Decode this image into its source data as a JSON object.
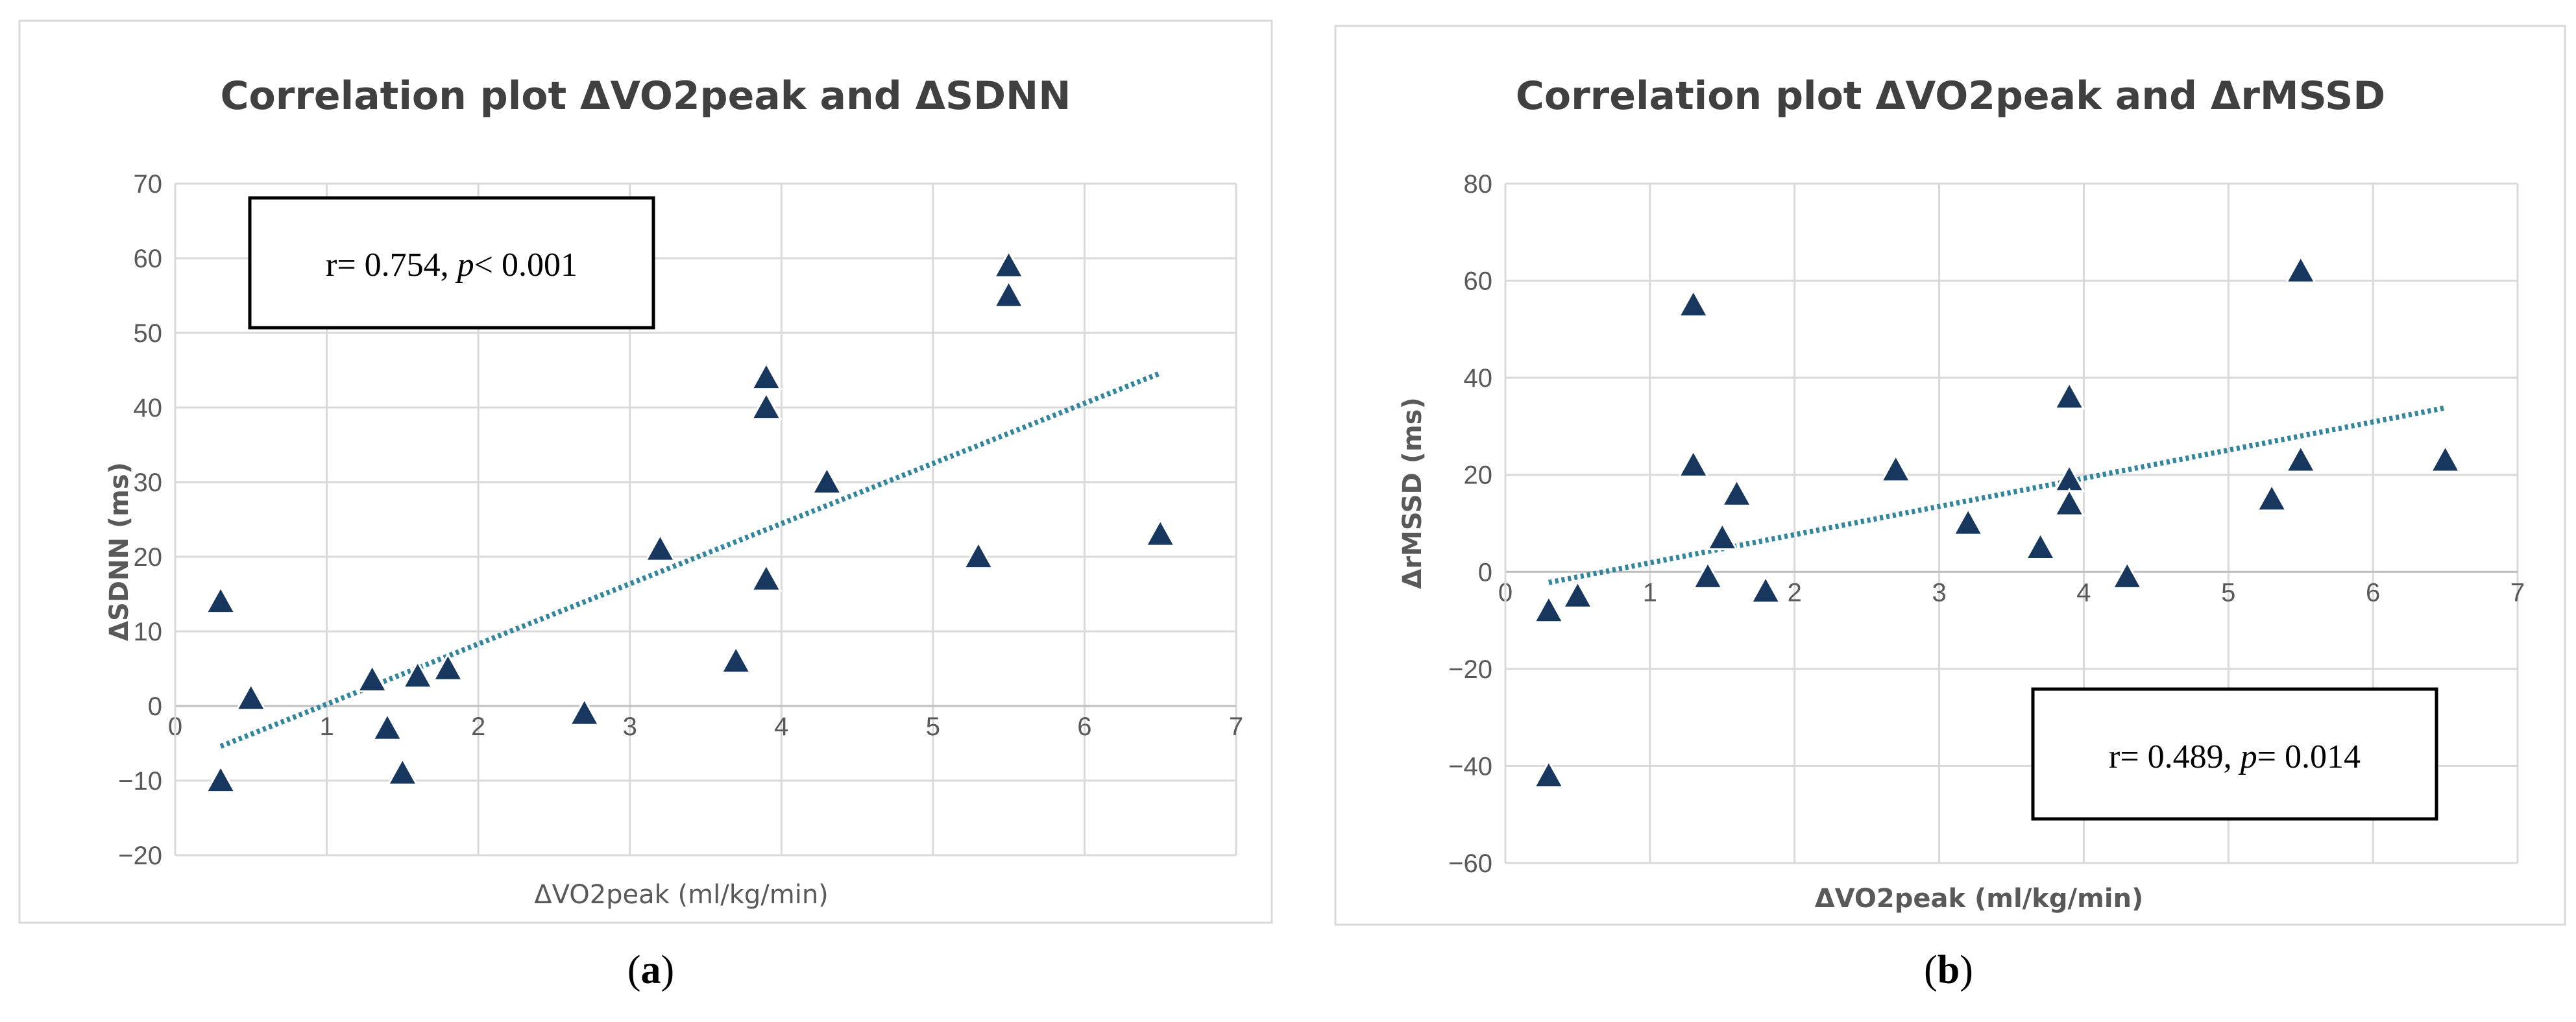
{
  "colors": {
    "marker": "#17375e",
    "trendline": "#31859c"
  },
  "chart_data": [
    {
      "type": "scatter",
      "title": "Correlation plot ΔVO2peak and ΔSDNN",
      "xlabel": "ΔVO2peak (ml/kg/min)",
      "ylabel": "ΔSDNN (ms)",
      "xlim": [
        0,
        7
      ],
      "ylim": [
        -20,
        70
      ],
      "x_ticks": [
        "0",
        "1",
        "2",
        "3",
        "4",
        "5",
        "6",
        "7"
      ],
      "y_ticks": [
        "−20",
        "−10",
        "0",
        "10",
        "20",
        "30",
        "40",
        "50",
        "60",
        "70"
      ],
      "grid": true,
      "marker": "triangle",
      "annotation_parts": [
        "r= 0.754, ",
        "p",
        "< 0.001"
      ],
      "annotation_position": "top-left",
      "trendline": {
        "type": "linear",
        "x": [
          0.3,
          6.5
        ],
        "y": [
          -5.4,
          44.6
        ]
      },
      "points": [
        {
          "x": 0.3,
          "y": 14
        },
        {
          "x": 0.3,
          "y": -10
        },
        {
          "x": 0.5,
          "y": 1
        },
        {
          "x": 1.3,
          "y": 3.5
        },
        {
          "x": 1.4,
          "y": -3
        },
        {
          "x": 1.5,
          "y": -9
        },
        {
          "x": 1.6,
          "y": 4
        },
        {
          "x": 1.8,
          "y": 5
        },
        {
          "x": 2.7,
          "y": -1
        },
        {
          "x": 3.2,
          "y": 21
        },
        {
          "x": 3.7,
          "y": 6
        },
        {
          "x": 3.9,
          "y": 44
        },
        {
          "x": 3.9,
          "y": 40
        },
        {
          "x": 3.9,
          "y": 17
        },
        {
          "x": 4.3,
          "y": 30
        },
        {
          "x": 5.3,
          "y": 20
        },
        {
          "x": 5.5,
          "y": 59
        },
        {
          "x": 5.5,
          "y": 55
        },
        {
          "x": 6.5,
          "y": 23
        }
      ],
      "panel_label_parts": [
        "(",
        "a",
        ")"
      ]
    },
    {
      "type": "scatter",
      "title": "Correlation plot ΔVO2peak and ΔrMSSD",
      "xlabel": "ΔVO2peak (ml/kg/min)",
      "ylabel": "ΔrMSSD (ms)",
      "xlim": [
        0,
        7
      ],
      "ylim": [
        -60,
        80
      ],
      "x_ticks": [
        "0",
        "1",
        "2",
        "3",
        "4",
        "5",
        "6",
        "7"
      ],
      "y_ticks": [
        "−60",
        "−40",
        "−20",
        "0",
        "20",
        "40",
        "60",
        "80"
      ],
      "grid": true,
      "marker": "triangle",
      "annotation_parts": [
        "r= 0.489, ",
        "p",
        "= 0.014"
      ],
      "annotation_position": "bottom-right",
      "trendline": {
        "type": "linear",
        "x": [
          0.3,
          6.5
        ],
        "y": [
          -2.2,
          33.8
        ]
      },
      "points": [
        {
          "x": 0.3,
          "y": -8
        },
        {
          "x": 0.3,
          "y": -42
        },
        {
          "x": 0.5,
          "y": -5
        },
        {
          "x": 1.3,
          "y": 55
        },
        {
          "x": 1.3,
          "y": 22
        },
        {
          "x": 1.4,
          "y": -1
        },
        {
          "x": 1.5,
          "y": 7
        },
        {
          "x": 1.6,
          "y": 16
        },
        {
          "x": 1.8,
          "y": -4
        },
        {
          "x": 2.7,
          "y": 21
        },
        {
          "x": 3.2,
          "y": 10
        },
        {
          "x": 3.7,
          "y": 5
        },
        {
          "x": 3.9,
          "y": 36
        },
        {
          "x": 3.9,
          "y": 19
        },
        {
          "x": 3.9,
          "y": 14
        },
        {
          "x": 4.3,
          "y": -1
        },
        {
          "x": 5.3,
          "y": 15
        },
        {
          "x": 5.5,
          "y": 62
        },
        {
          "x": 5.5,
          "y": 23
        },
        {
          "x": 6.5,
          "y": 23
        }
      ],
      "panel_label_parts": [
        "(",
        "b",
        ")"
      ]
    }
  ]
}
